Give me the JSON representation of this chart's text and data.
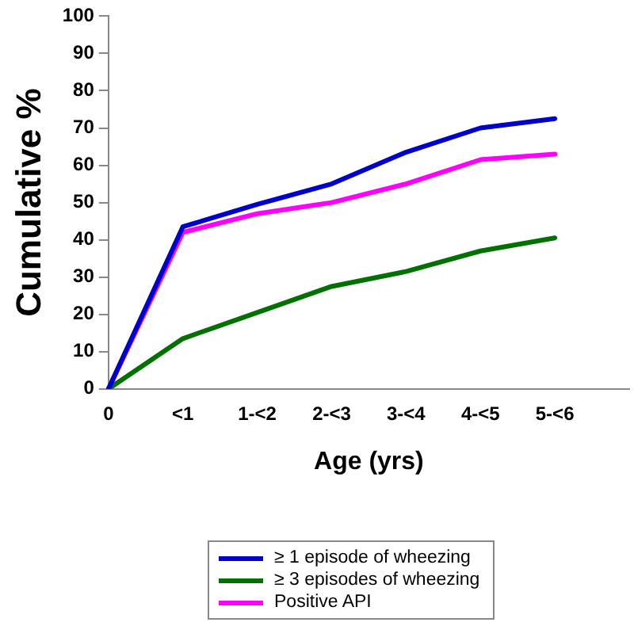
{
  "chart_data": {
    "type": "line",
    "xlabel": "Age (yrs)",
    "ylabel": "Cumulative %",
    "categories": [
      "0",
      "<1",
      "1-<2",
      "2-<3",
      "3-<4",
      "4-<5",
      "5-<6",
      null
    ],
    "series": [
      {
        "name": "≥ 1 episode of wheezing",
        "color": "#0000cc",
        "values": [
          0,
          43.5,
          49.5,
          55,
          63.5,
          70,
          72.5,
          null
        ]
      },
      {
        "name": "≥ 3 episodes of wheezing",
        "color": "#007000",
        "values": [
          0,
          13.5,
          20.5,
          27.5,
          31.5,
          37,
          40.5,
          null
        ]
      },
      {
        "name": "Positive API",
        "color": "#ff00ff",
        "values": [
          0,
          42,
          47,
          50,
          55,
          61.5,
          63,
          null
        ]
      }
    ],
    "ylim": [
      0,
      100
    ],
    "yticks": [
      0,
      10,
      20,
      30,
      40,
      50,
      60,
      70,
      80,
      90,
      100
    ],
    "grid": false,
    "legend": "bottom",
    "marker": "none",
    "line_style": "solid"
  }
}
